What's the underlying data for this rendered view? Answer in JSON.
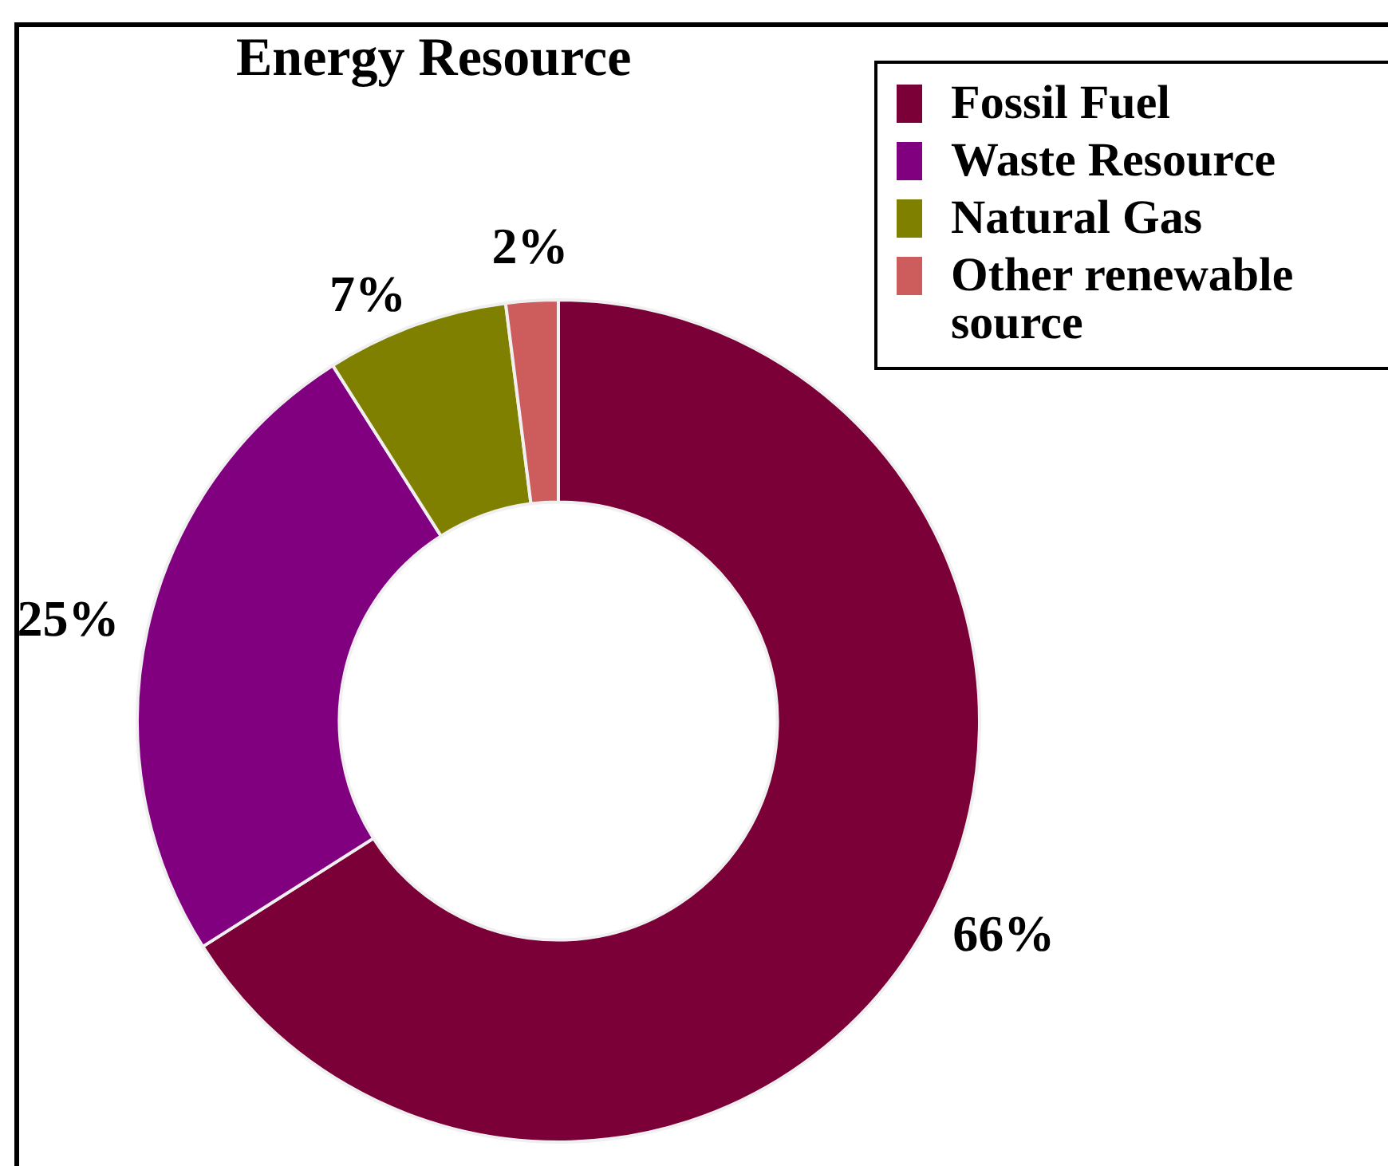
{
  "chart_data": {
    "type": "donut",
    "title": "Energy Resource",
    "categories": [
      "Fossil Fuel",
      "Waste Resource",
      "Natural Gas",
      "Other renewable source"
    ],
    "values": [
      66,
      25,
      7,
      2
    ],
    "colors": [
      "#7b0038",
      "#800080",
      "#808000",
      "#cd5c5c"
    ],
    "value_labels": [
      "66%",
      "25%",
      "7%",
      "2%"
    ],
    "legend": "top right"
  }
}
